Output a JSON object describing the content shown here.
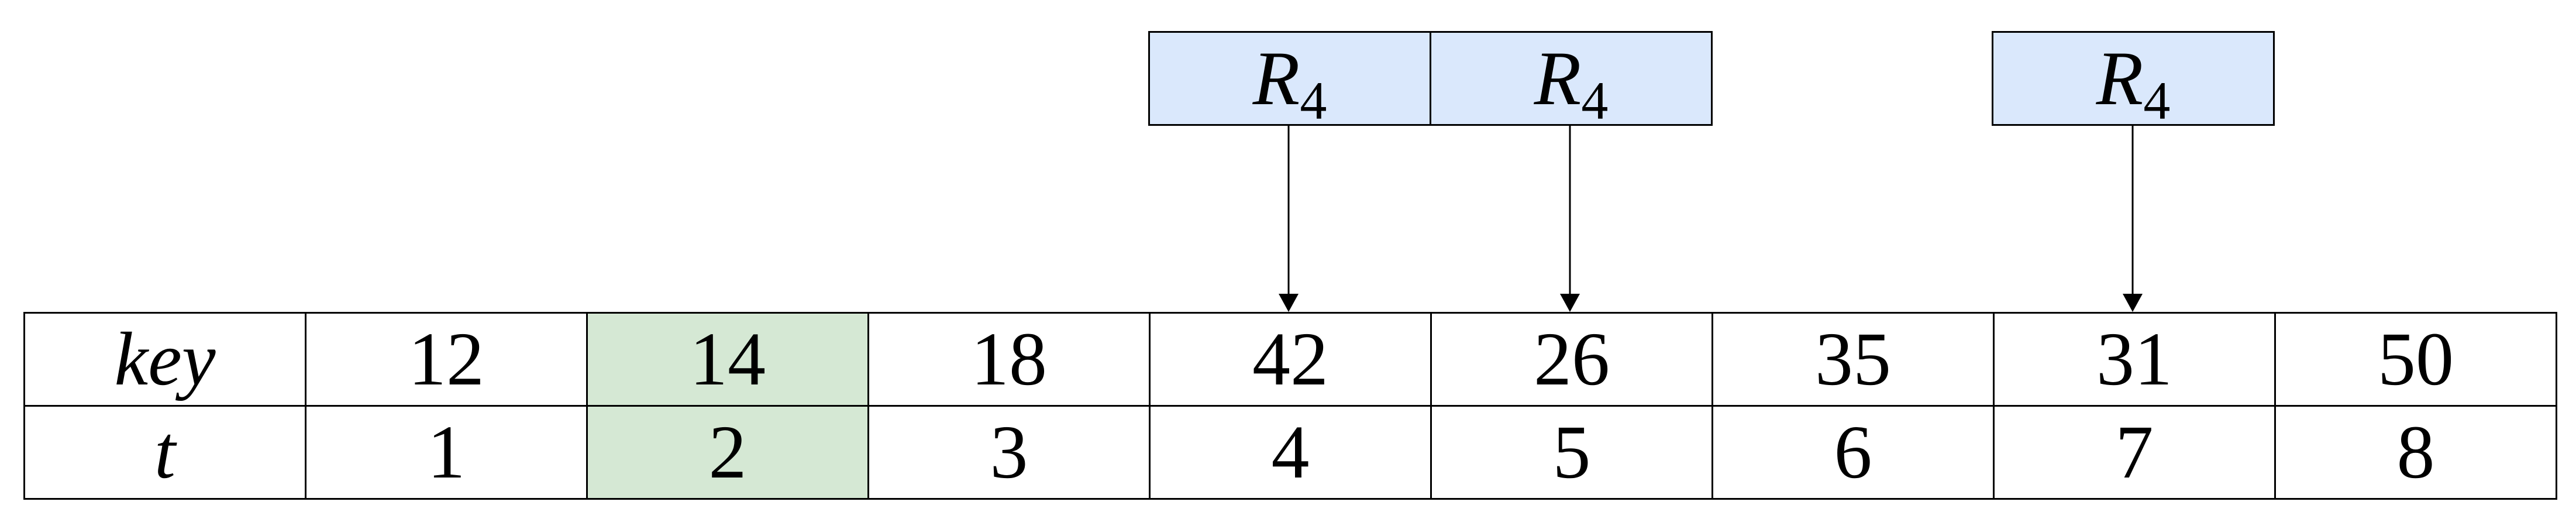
{
  "tags": [
    {
      "letter": "R",
      "subscript": "4",
      "points_to_column": 4
    },
    {
      "letter": "R",
      "subscript": "4",
      "points_to_column": 5
    },
    {
      "letter": "R",
      "subscript": "4",
      "points_to_column": 7
    }
  ],
  "table": {
    "rows": [
      {
        "label": "key",
        "cells": [
          "12",
          "14",
          "18",
          "42",
          "26",
          "35",
          "31",
          "50"
        ]
      },
      {
        "label": "t",
        "cells": [
          "1",
          "2",
          "3",
          "4",
          "5",
          "6",
          "7",
          "8"
        ]
      }
    ],
    "highlighted_column": 2,
    "highlight_color": "#d5e8d4",
    "tag_color": "#dae8fc"
  }
}
